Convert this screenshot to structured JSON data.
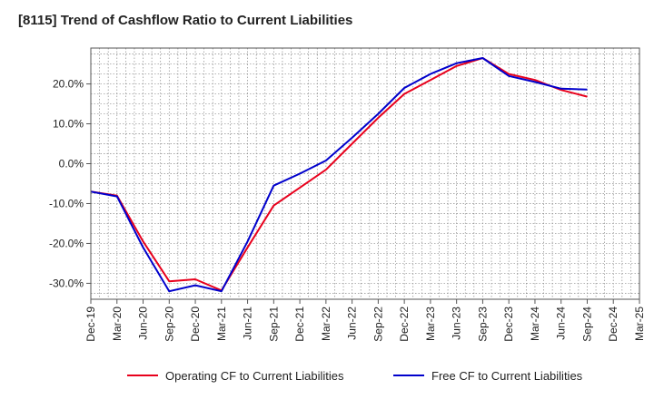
{
  "chart_data": {
    "type": "line",
    "title": "[8115]  Trend of Cashflow Ratio to Current Liabilities",
    "xlabel": "",
    "ylabel": "",
    "x": [
      "Dec-19",
      "Mar-20",
      "Jun-20",
      "Sep-20",
      "Dec-20",
      "Mar-21",
      "Jun-21",
      "Sep-21",
      "Dec-21",
      "Mar-22",
      "Jun-22",
      "Sep-22",
      "Dec-22",
      "Mar-23",
      "Jun-23",
      "Sep-23",
      "Dec-23",
      "Mar-24",
      "Jun-24",
      "Sep-24",
      "Dec-24",
      "Mar-25"
    ],
    "ylim": [
      -34,
      29
    ],
    "yticks": [
      -30,
      -20,
      -10,
      0,
      10,
      20
    ],
    "ytick_labels": [
      "-30.0%",
      "-20.0%",
      "-10.0%",
      "0.0%",
      "10.0%",
      "20.0%"
    ],
    "grid": true,
    "legend_position": "bottom",
    "series": [
      {
        "name": "Operating CF to Current Liabilities",
        "color": "#e8001c",
        "values": [
          -7.0,
          -8.0,
          -19.5,
          -29.5,
          -29.0,
          -31.8,
          -21.0,
          -10.5,
          -6.0,
          -1.5,
          5.0,
          11.5,
          17.5,
          21.0,
          24.5,
          26.5,
          22.5,
          21.0,
          18.5,
          16.8,
          null,
          null
        ]
      },
      {
        "name": "Free CF to Current Liabilities",
        "color": "#0000cc",
        "values": [
          -7.0,
          -8.2,
          -21.0,
          -32.0,
          -30.5,
          -32.0,
          -19.5,
          -5.5,
          -2.5,
          0.8,
          6.5,
          12.5,
          19.0,
          22.5,
          25.2,
          26.5,
          22.0,
          20.5,
          18.8,
          18.6,
          null,
          null
        ]
      }
    ]
  }
}
